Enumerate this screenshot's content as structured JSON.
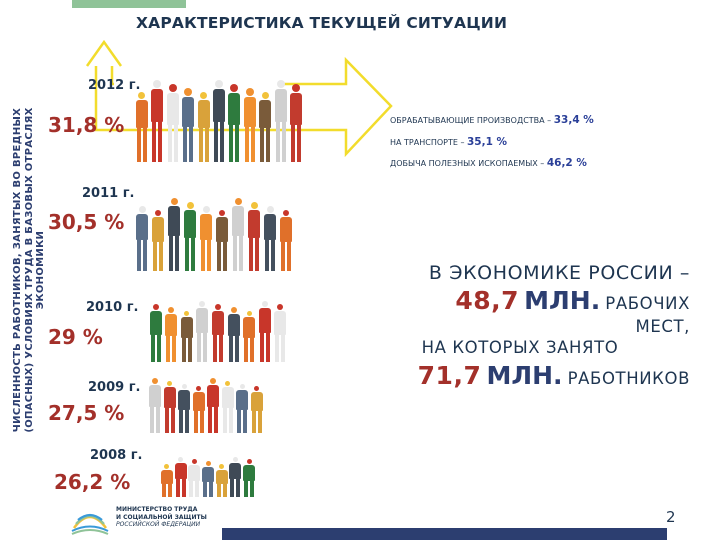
{
  "slide": {
    "title": "ХАРАКТЕРИСТИКА ТЕКУЩЕЙ СИТУАЦИИ",
    "vertical_label": "ЧИСЛЕННОСТЬ РАБОТНИКОВ, ЗАНЯТЫХ ВО ВРЕДНЫХ (ОПАСНЫХ) УСЛОВИЯХ ТРУДА В БАЗОВЫХ ОТРАСЛЯХ ЭКОНОМИКИ",
    "page_number": "2"
  },
  "years": [
    {
      "year": "2012 г.",
      "percent": "31,8 %"
    },
    {
      "year": "2011 г.",
      "percent": "30,5 %"
    },
    {
      "year": "2010 г.",
      "percent": "29 %"
    },
    {
      "year": "2009 г.",
      "percent": "27,5 %"
    },
    {
      "year": "2008 г.",
      "percent": "26,2 %"
    }
  ],
  "sectors": [
    {
      "label": "ОБРАБАТЫВАЮЩИЕ ПРОИЗВОДСТВА – ",
      "value": "33,4 %"
    },
    {
      "label": "НА ТРАНСПОРТЕ – ",
      "value": "35,1 %"
    },
    {
      "label": "ДОБЫЧА ПОЛЕЗНЫХ ИСКОПАЕМЫХ – ",
      "value": "46,2 %"
    }
  ],
  "summary": {
    "line1": "В ЭКОНОМИКЕ РОССИИ –",
    "jobs_number": "48,7",
    "jobs_unit": "МЛН.",
    "jobs_word": "РАБОЧИХ",
    "jobs_word2": "МЕСТ,",
    "line4": "НА КОТОРЫХ ЗАНЯТО",
    "workers_number": "71,7",
    "workers_unit": "МЛН.",
    "workers_word": "РАБОТНИКОВ"
  },
  "logo": {
    "line1": "МИНИСТЕРСТВО ТРУДА",
    "line2": "И СОЦИАЛЬНОЙ ЗАЩИТЫ",
    "line3": "РОССИЙСКОЙ ФЕДЕРАЦИИ"
  },
  "colors": {
    "title": "#1e3550",
    "percent": "#a3302a",
    "accent_blue": "#2a3f98",
    "arrow": "#f2dc2c",
    "top_bar": "#8fc398",
    "bottom_bar": "#2c3e70"
  },
  "worker_palette": [
    "#e0702a",
    "#c8362a",
    "#e8e8e8",
    "#5a6f8a",
    "#d9a23a",
    "#3f4a56",
    "#2e7b3e",
    "#f09030",
    "#7a5b3a",
    "#d0d0d0",
    "#c23b2e",
    "#44505e"
  ]
}
